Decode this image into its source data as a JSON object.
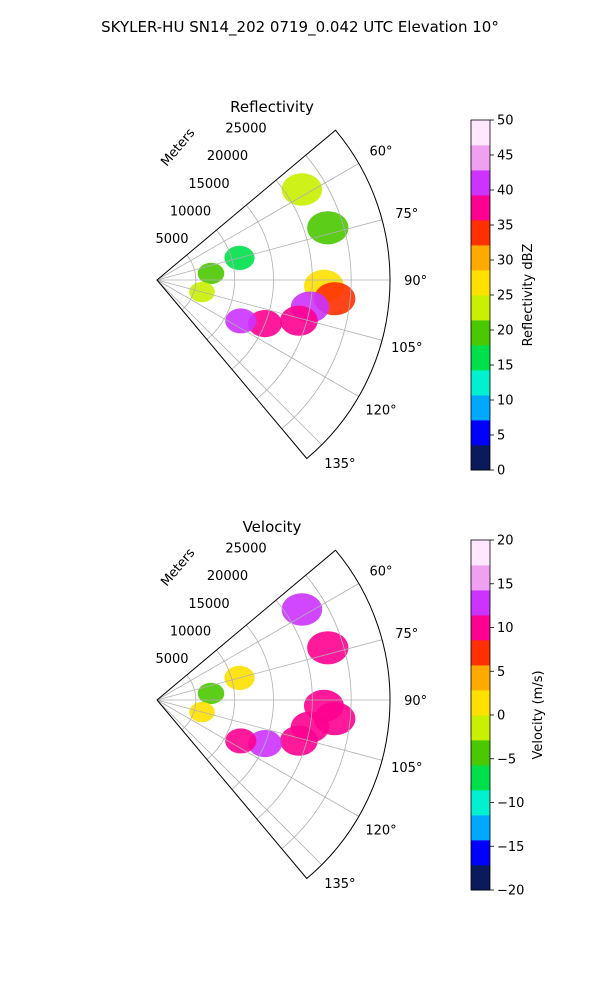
{
  "figure": {
    "suptitle": "SKYLER-HU  SN14_202  0719_0.042 UTC Elevation 10°"
  },
  "chart_data": [
    {
      "type": "heatmap",
      "projection": "polar-sector",
      "title": "Reflectivity",
      "range_label": "Meters",
      "range_ticks": [
        "5000",
        "10000",
        "15000",
        "20000",
        "25000"
      ],
      "range_max": 30000,
      "azimuth_range_deg": [
        50,
        140
      ],
      "azimuth_ticks": [
        "60°",
        "75°",
        "90°",
        "105°",
        "120°",
        "135°"
      ],
      "colorbar": {
        "label": "Reflectivity dBZ",
        "min": 0,
        "max": 50,
        "ticks": [
          "0",
          "5",
          "10",
          "15",
          "20",
          "25",
          "30",
          "35",
          "40",
          "45",
          "50"
        ],
        "colors": [
          "#0b1a5a",
          "#0000ff",
          "#00a8ff",
          "#00f0d0",
          "#00e04a",
          "#4ac800",
          "#c8f000",
          "#ffe000",
          "#ffaa00",
          "#ff3000",
          "#ff0090",
          "#cc33ff",
          "#f0a0f0",
          "#ffe8ff"
        ]
      },
      "echo_regions": [
        {
          "az": 58,
          "r": 22000,
          "value": 22
        },
        {
          "az": 73,
          "r": 23000,
          "value": 18
        },
        {
          "az": 75,
          "r": 11000,
          "value": 15
        },
        {
          "az": 83,
          "r": 7000,
          "value": 18
        },
        {
          "az": 92,
          "r": 21500,
          "value": 28
        },
        {
          "az": 96,
          "r": 23000,
          "value": 34
        },
        {
          "az": 100,
          "r": 20000,
          "value": 40
        },
        {
          "az": 106,
          "r": 19000,
          "value": 38
        },
        {
          "az": 112,
          "r": 15000,
          "value": 36
        },
        {
          "az": 116,
          "r": 12000,
          "value": 40
        },
        {
          "az": 105,
          "r": 6000,
          "value": 22
        }
      ]
    },
    {
      "type": "heatmap",
      "projection": "polar-sector",
      "title": "Velocity",
      "range_label": "Meters",
      "range_ticks": [
        "5000",
        "10000",
        "15000",
        "20000",
        "25000"
      ],
      "range_max": 30000,
      "azimuth_range_deg": [
        50,
        140
      ],
      "azimuth_ticks": [
        "60°",
        "75°",
        "90°",
        "105°",
        "120°",
        "135°"
      ],
      "colorbar": {
        "label": "Velocity (m/s)",
        "min": -20,
        "max": 20,
        "ticks": [
          "−20",
          "−15",
          "−10",
          "−5",
          "0",
          "5",
          "10",
          "15",
          "20"
        ],
        "colors": [
          "#0b1a5a",
          "#0000ff",
          "#00a8ff",
          "#00f0d0",
          "#00e04a",
          "#4ac800",
          "#c8f000",
          "#ffe000",
          "#ffaa00",
          "#ff3000",
          "#ff0090",
          "#cc33ff",
          "#f0a0f0",
          "#ffe8ff"
        ]
      },
      "echo_regions": [
        {
          "az": 58,
          "r": 22000,
          "value": 12
        },
        {
          "az": 73,
          "r": 23000,
          "value": 11
        },
        {
          "az": 75,
          "r": 11000,
          "value": 2
        },
        {
          "az": 83,
          "r": 7000,
          "value": -4
        },
        {
          "az": 92,
          "r": 21500,
          "value": 10
        },
        {
          "az": 96,
          "r": 23000,
          "value": 9
        },
        {
          "az": 100,
          "r": 20000,
          "value": 11
        },
        {
          "az": 106,
          "r": 19000,
          "value": 10
        },
        {
          "az": 112,
          "r": 15000,
          "value": 12
        },
        {
          "az": 116,
          "r": 12000,
          "value": 9
        },
        {
          "az": 105,
          "r": 6000,
          "value": 1
        }
      ]
    }
  ]
}
